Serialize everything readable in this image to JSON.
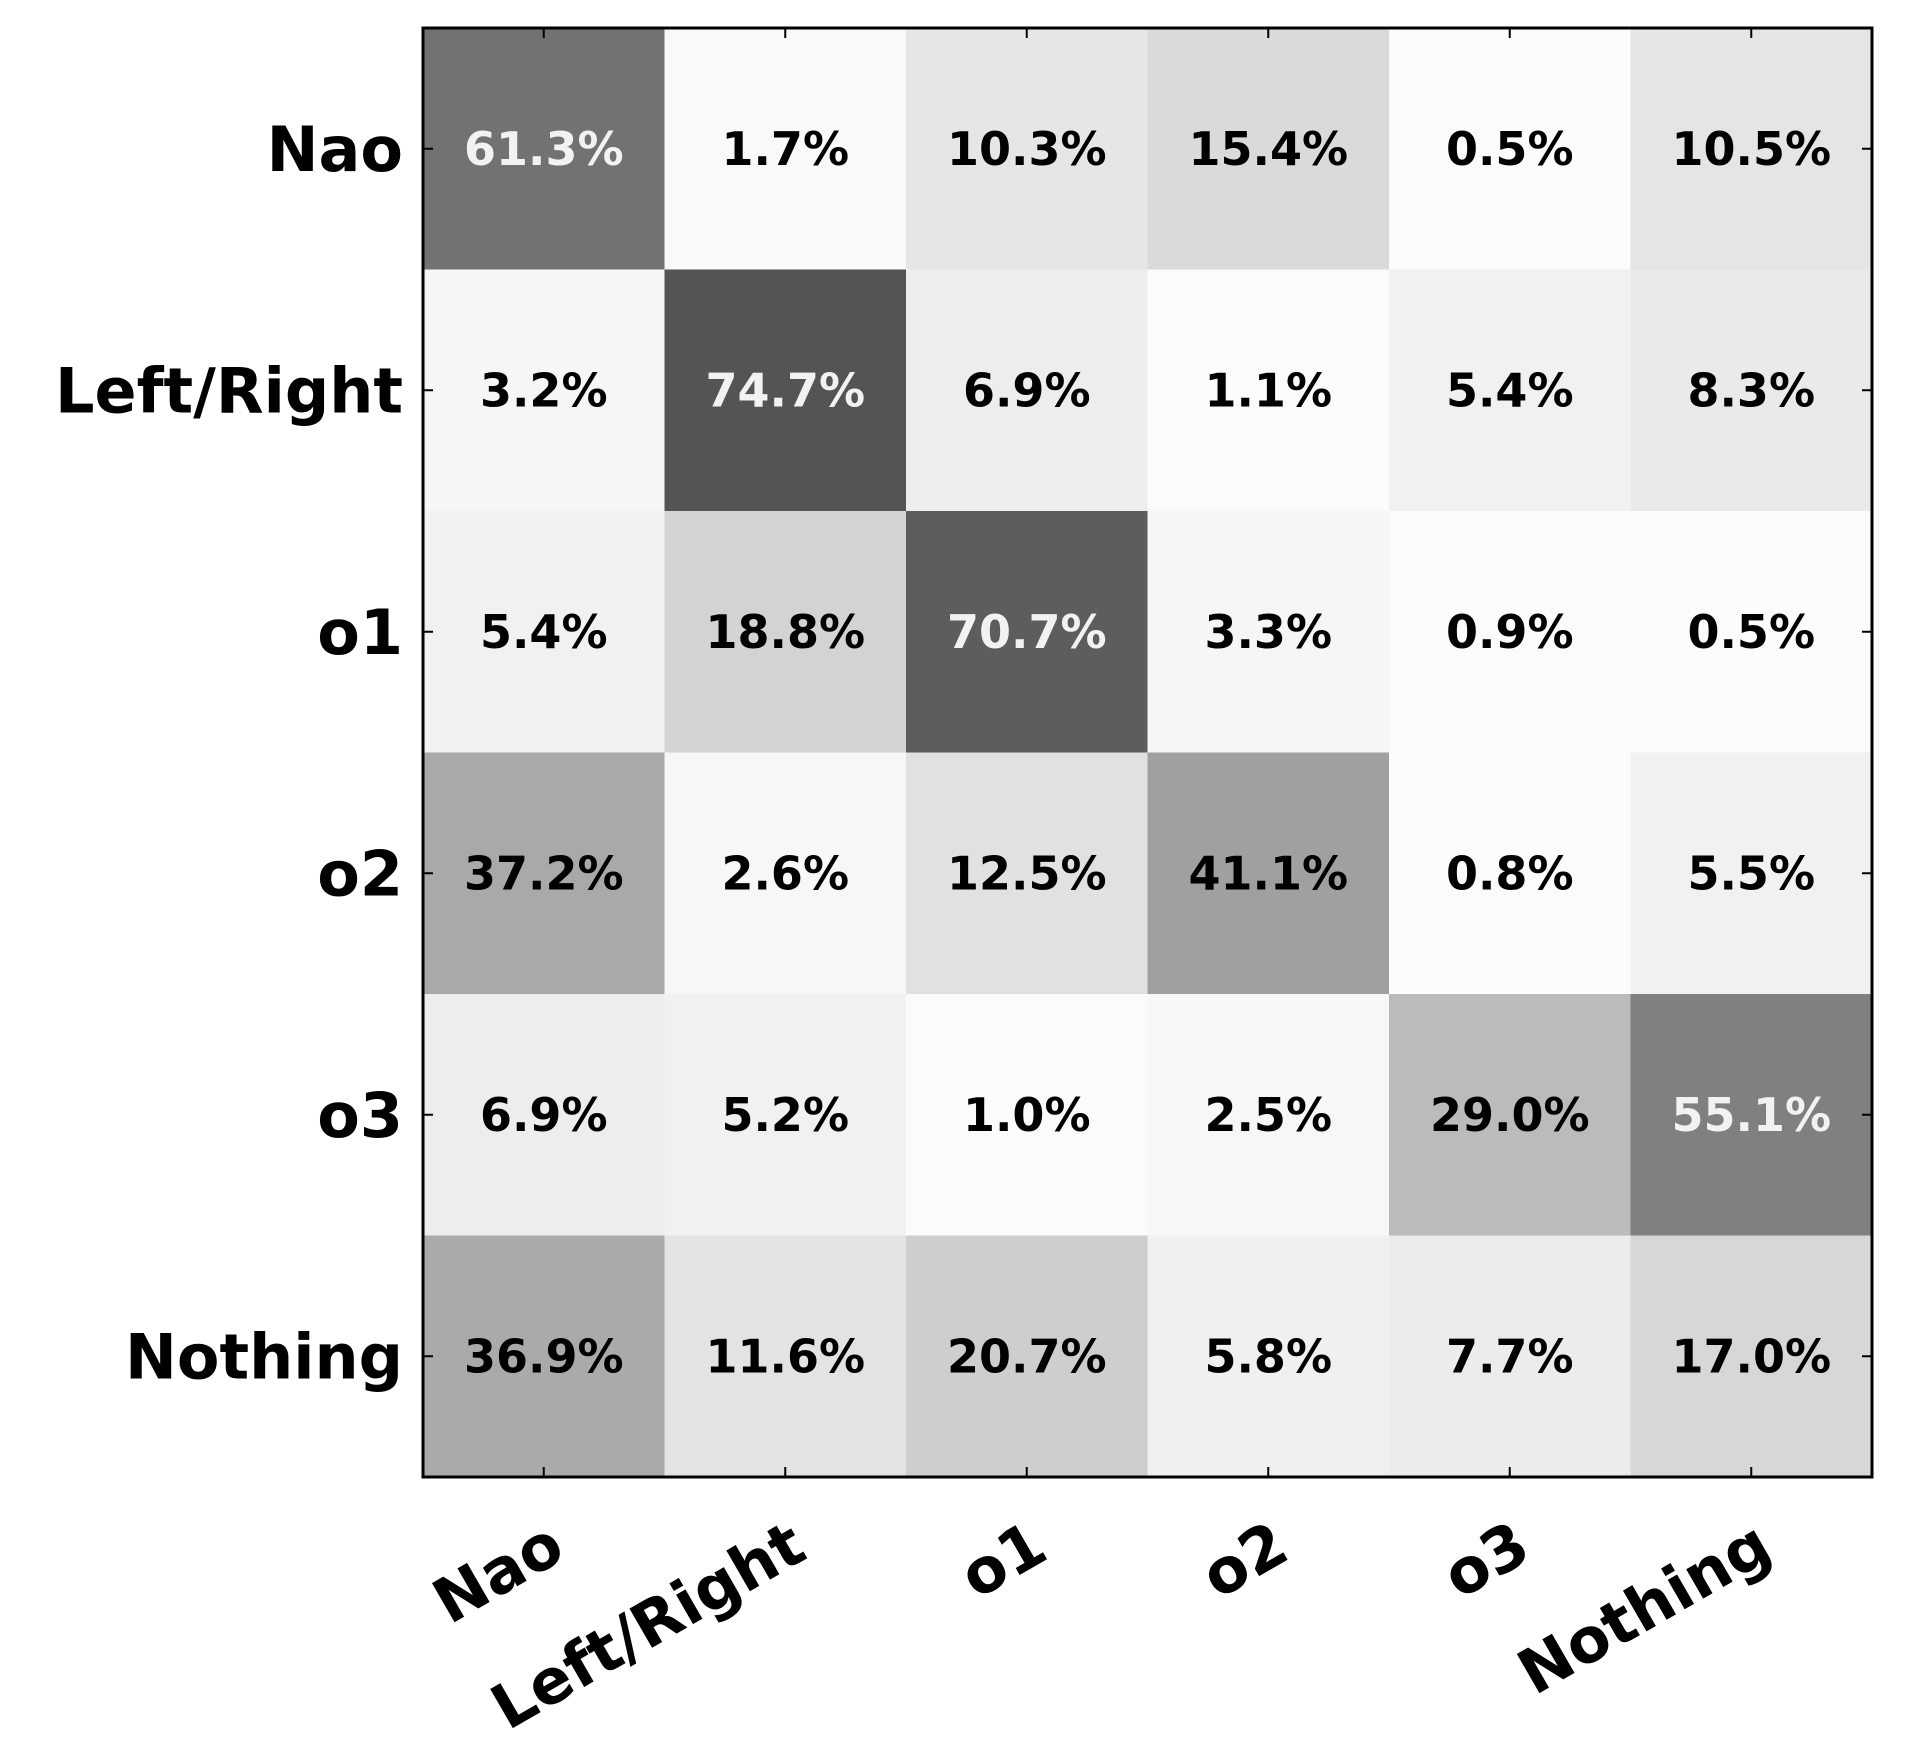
{
  "chart_data": {
    "type": "heatmap",
    "title": "",
    "xlabel": "",
    "ylabel": "",
    "rows": [
      "Nao",
      "Left/Right",
      "o1",
      "o2",
      "o3",
      "Nothing"
    ],
    "columns": [
      "Nao",
      "Left/Right",
      "o1",
      "o2",
      "o3",
      "Nothing"
    ],
    "values": [
      [
        61.3,
        1.7,
        10.3,
        15.4,
        0.5,
        10.5
      ],
      [
        3.2,
        74.7,
        6.9,
        1.1,
        5.4,
        8.3
      ],
      [
        5.4,
        18.8,
        70.7,
        3.3,
        0.9,
        0.5
      ],
      [
        37.2,
        2.6,
        12.5,
        41.1,
        0.8,
        5.5
      ],
      [
        6.9,
        5.2,
        1.0,
        2.5,
        29.0,
        55.1
      ],
      [
        36.9,
        11.6,
        20.7,
        5.8,
        7.7,
        17.0
      ]
    ],
    "labels": [
      [
        "61.3%",
        "1.7%",
        "10.3%",
        "15.4%",
        "0.5%",
        "10.5%"
      ],
      [
        "3.2%",
        "74.7%",
        "6.9%",
        "1.1%",
        "5.4%",
        "8.3%"
      ],
      [
        "5.4%",
        "18.8%",
        "70.7%",
        "3.3%",
        "0.9%",
        "0.5%"
      ],
      [
        "37.2%",
        "2.6%",
        "12.5%",
        "41.1%",
        "0.8%",
        "5.5%"
      ],
      [
        "6.9%",
        "5.2%",
        "1.0%",
        "2.5%",
        "29.0%",
        "55.1%"
      ],
      [
        "36.9%",
        "11.6%",
        "20.7%",
        "5.8%",
        "7.7%",
        "17.0%"
      ]
    ],
    "value_range": [
      0,
      100
    ],
    "colormap": "greys",
    "label_light_color": "#f2f2f2",
    "label_dark_color": "#000000",
    "grid": false,
    "legend": "none"
  }
}
